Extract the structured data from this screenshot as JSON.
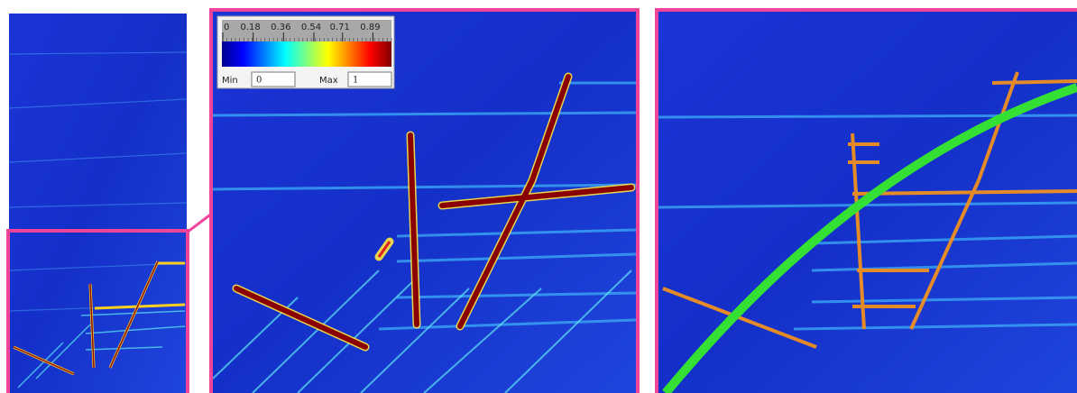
{
  "colorbar": {
    "ticks": [
      0,
      0.18,
      0.36,
      0.54,
      0.71,
      0.89
    ],
    "min_label": "Min",
    "min_value": 0,
    "max_label": "Max",
    "max_value": 1
  }
}
